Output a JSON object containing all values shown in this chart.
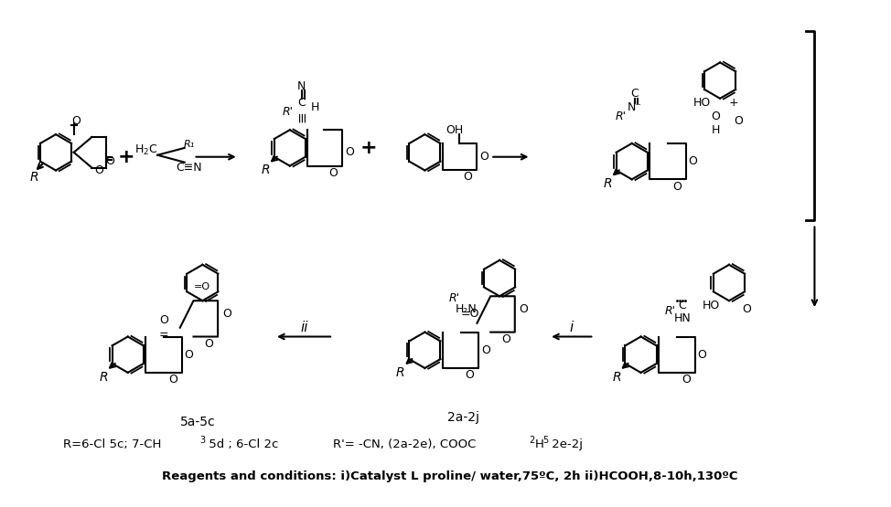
{
  "title": "",
  "background_color": "#ffffff",
  "figure_width": 9.74,
  "figure_height": 5.55,
  "dpi": 100,
  "bottom_line1": "R=6-Cl 5c; 7-CH₃ 5d ; 6-Cl 2c",
  "bottom_line1_r": "R’= -CN, (2a-2e), COOC₂H₅ 2e-2j",
  "bottom_line2": "Reagents and conditions: i)Catalyst L proline/ water,75ºC, 2h ii)HCOOH,8-10h,130ºC",
  "label_5a5c": "5a-5c",
  "label_2a2j": "2a-2j",
  "label_i": "i",
  "label_ii": "ii",
  "image_encoding": "chemical_scheme"
}
